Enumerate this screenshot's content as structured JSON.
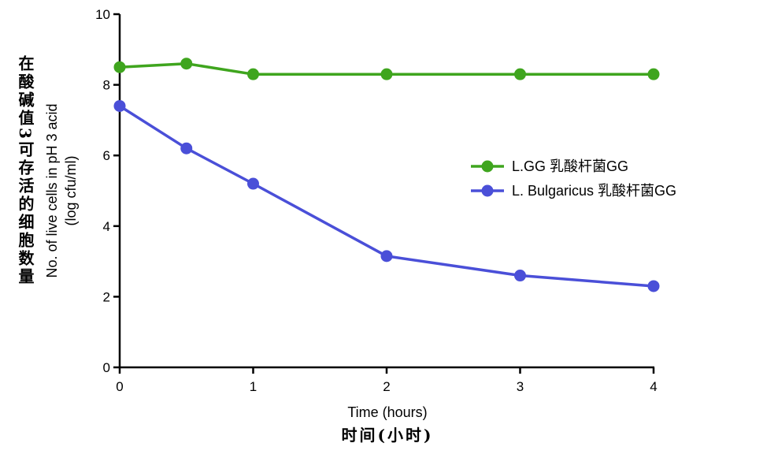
{
  "chart_data": {
    "type": "line",
    "xlabel": "Time (hours)",
    "xlabel_cn": "时间(小时)",
    "ylabel_line1": "No. of live cells in pH 3 acid",
    "ylabel_line2": "(log cfu/ml)",
    "ylabel_cn": "在酸碱值3可存活的细胞数量",
    "xlim": [
      0,
      4
    ],
    "ylim": [
      0,
      10
    ],
    "xticks": [
      "0",
      "1",
      "2",
      "3",
      "4"
    ],
    "yticks": [
      "0",
      "2",
      "4",
      "6",
      "8",
      "10"
    ],
    "legend_position": "center-right",
    "series": [
      {
        "name": "L.GG 乳酸杆菌GG",
        "color": "#3fa51e",
        "x": [
          0,
          0.5,
          1,
          2,
          3,
          4
        ],
        "y": [
          8.5,
          8.6,
          8.3,
          8.3,
          8.3,
          8.3
        ]
      },
      {
        "name": "L. Bulgaricus 乳酸杆菌GG",
        "color": "#4a4fd8",
        "x": [
          0,
          0.5,
          1,
          2,
          3,
          4
        ],
        "y": [
          7.4,
          6.2,
          5.2,
          3.15,
          2.6,
          2.3
        ]
      }
    ]
  }
}
